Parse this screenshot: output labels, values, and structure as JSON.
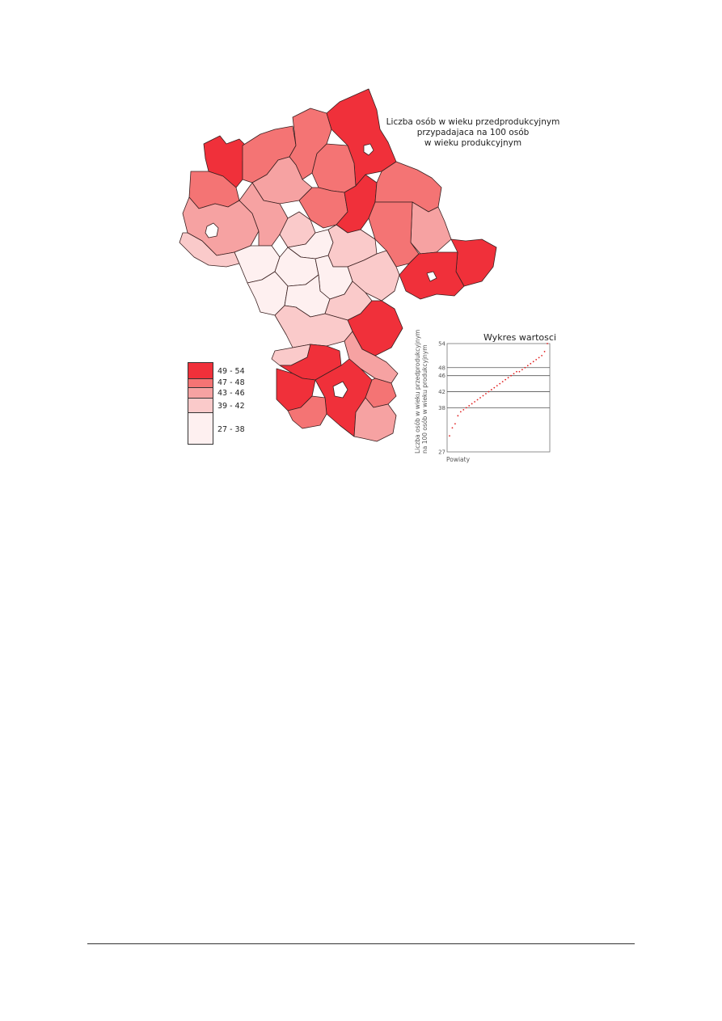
{
  "map": {
    "title_lines": [
      "Liczba osób w wieku przedprodukcyjnym",
      "przypadajaca na 100 osób",
      "w wieku produkcyjnym"
    ],
    "colors": {
      "c1": "#f0303a",
      "c2": "#f47474",
      "c3": "#f6a2a2",
      "c4": "#facaca",
      "c5": "#fef0f0",
      "border": "#3a2020"
    }
  },
  "legend": {
    "items": [
      {
        "label": "49 - 54",
        "color": "#f0303a"
      },
      {
        "label": "47 - 48",
        "color": "#f47474"
      },
      {
        "label": "43 - 46",
        "color": "#f6a2a2"
      },
      {
        "label": "39 - 42",
        "color": "#facaca"
      },
      {
        "label": "27 - 38",
        "color": "#fef0f0"
      }
    ]
  },
  "chart_data": {
    "type": "scatter",
    "title": "Wykres wartosci",
    "xlabel": "Powiaty",
    "ylabel_lines": [
      "Liczba osób w wieku przedprodukcyjnym",
      "na 100 osób w wieku produkcyjnym"
    ],
    "yticks": [
      27,
      38,
      42,
      46,
      48,
      54
    ],
    "ylim": [
      27,
      54
    ],
    "class_breaks": [
      38,
      42,
      46,
      48
    ],
    "point_color": "#e02020",
    "values": [
      31,
      33,
      34,
      36,
      37,
      37.5,
      38,
      38.5,
      39,
      39.5,
      40,
      40.5,
      41,
      41.5,
      42,
      42.5,
      43,
      43.5,
      44,
      44.5,
      45,
      45.5,
      46,
      46.5,
      47,
      47,
      47.5,
      48,
      48.5,
      49,
      49.5,
      50,
      50.5,
      51,
      52,
      54
    ]
  }
}
